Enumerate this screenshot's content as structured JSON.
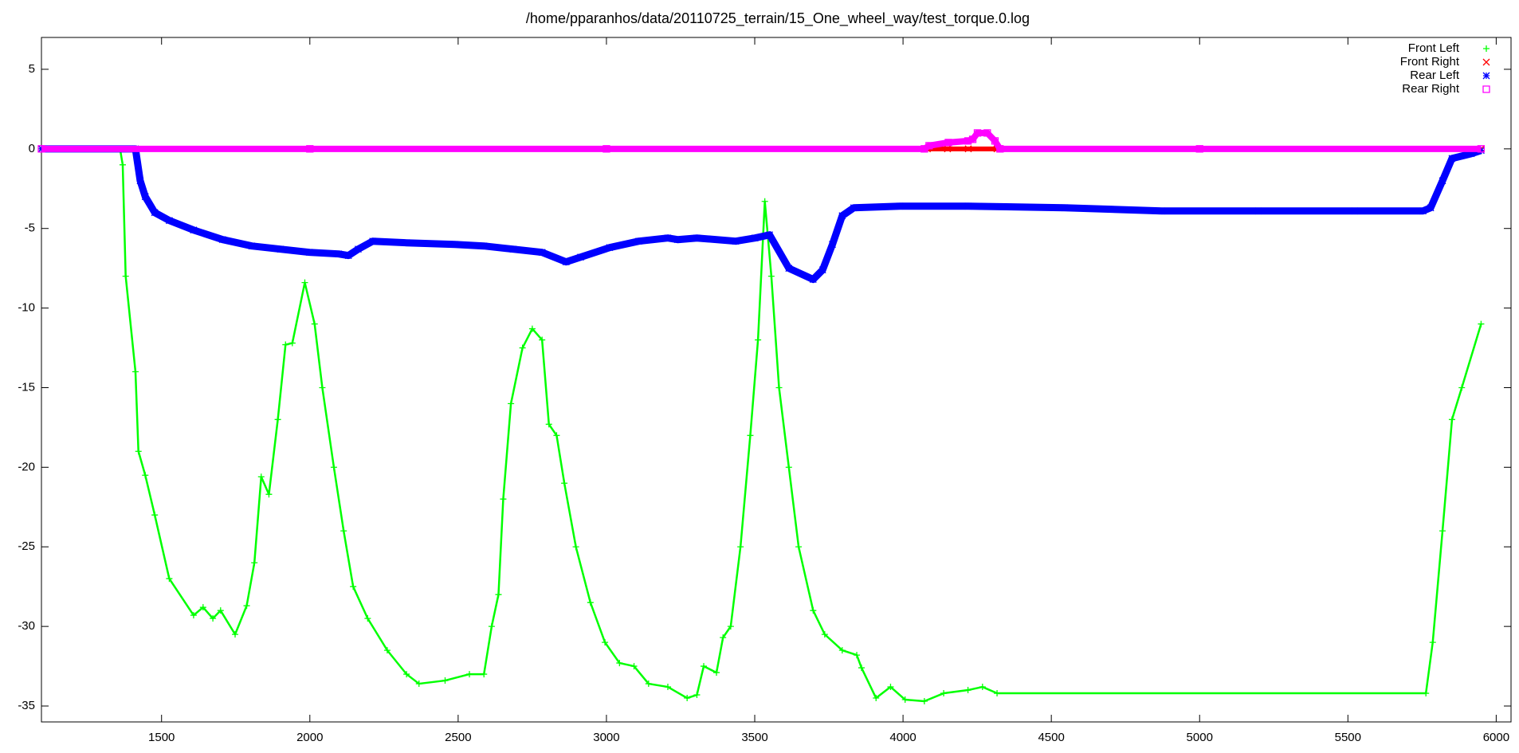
{
  "chart_data": {
    "type": "scatter",
    "title": "/home/pparanhos/data/20110725_terrain/15_One_wheel_way/test_torque.0.log",
    "xlim": [
      1095,
      6050
    ],
    "ylim": [
      -36,
      7
    ],
    "xticks": [
      1500,
      2000,
      2500,
      3000,
      3500,
      4000,
      4500,
      5000,
      5500,
      6000
    ],
    "yticks": [
      5,
      0,
      -5,
      -10,
      -15,
      -20,
      -25,
      -30,
      -35
    ],
    "grid": false,
    "legend": "top-right",
    "series": [
      {
        "name": "Front Left",
        "color": "#00ff00",
        "marker": "plus",
        "x": [
          1095,
          1360,
          1369,
          1379,
          1412,
          1422,
          1445,
          1477,
          1526,
          1608,
          1640,
          1673,
          1699,
          1748,
          1787,
          1813,
          1836,
          1862,
          1892,
          1918,
          1941,
          1983,
          2016,
          2042,
          2081,
          2114,
          2146,
          2195,
          2261,
          2326,
          2368,
          2456,
          2538,
          2587,
          2613,
          2636,
          2652,
          2678,
          2717,
          2750,
          2783,
          2806,
          2832,
          2858,
          2897,
          2946,
          2995,
          3044,
          3093,
          3142,
          3207,
          3272,
          3305,
          3328,
          3371,
          3393,
          3419,
          3452,
          3485,
          3511,
          3534,
          3556,
          3582,
          3615,
          3648,
          3697,
          3736,
          3795,
          3844,
          3860,
          3909,
          3958,
          4007,
          4072,
          4137,
          4219,
          4268,
          4317,
          5763,
          5786,
          5819,
          5851,
          5884,
          5949
        ],
        "values": [
          0,
          0,
          -1,
          -8,
          -14,
          -19,
          -20.5,
          -23,
          -27,
          -29.3,
          -28.8,
          -29.5,
          -29,
          -30.5,
          -28.7,
          -26,
          -20.6,
          -21.7,
          -17,
          -12.3,
          -12.2,
          -8.4,
          -11,
          -15,
          -20,
          -24,
          -27.5,
          -29.5,
          -31.5,
          -33,
          -33.6,
          -33.4,
          -33,
          -33,
          -30,
          -28,
          -22,
          -16,
          -12.5,
          -11.3,
          -12,
          -17.3,
          -18,
          -21,
          -25,
          -28.5,
          -31,
          -32.3,
          -32.5,
          -33.6,
          -33.8,
          -34.5,
          -34.3,
          -32.5,
          -32.9,
          -30.7,
          -30,
          -25,
          -18,
          -12,
          -3.3,
          -8,
          -15,
          -20,
          -25,
          -29,
          -30.5,
          -31.5,
          -31.8,
          -32.6,
          -34.5,
          -33.8,
          -34.6,
          -34.7,
          -34.2,
          -34,
          -33.8,
          -34.2,
          -34.2,
          -31,
          -24,
          -17,
          -15,
          -11
        ]
      },
      {
        "name": "Front Right",
        "color": "#ff0000",
        "marker": "cross",
        "x": [
          1095,
          4082,
          4150,
          4220,
          4317,
          5949
        ],
        "values": [
          0,
          0,
          0,
          0,
          0,
          0
        ]
      },
      {
        "name": "Rear Left",
        "color": "#0000ff",
        "marker": "star",
        "x": [
          1095,
          1412,
          1428,
          1445,
          1477,
          1526,
          1608,
          1706,
          1804,
          1901,
          1999,
          2097,
          2130,
          2163,
          2212,
          2326,
          2489,
          2587,
          2685,
          2783,
          2864,
          2913,
          3011,
          3109,
          3207,
          3240,
          3305,
          3436,
          3501,
          3550,
          3615,
          3697,
          3729,
          3762,
          3795,
          3834,
          3990,
          4219,
          4545,
          4872,
          5198,
          5524,
          5753,
          5779,
          5819,
          5851,
          5916,
          5949
        ],
        "values": [
          0,
          0,
          -2,
          -3,
          -4,
          -4.5,
          -5.1,
          -5.7,
          -6.1,
          -6.3,
          -6.5,
          -6.6,
          -6.7,
          -6.3,
          -5.8,
          -5.9,
          -6,
          -6.1,
          -6.3,
          -6.5,
          -7.1,
          -6.8,
          -6.2,
          -5.8,
          -5.6,
          -5.7,
          -5.6,
          -5.8,
          -5.6,
          -5.4,
          -7.5,
          -8.2,
          -7.6,
          -6,
          -4.2,
          -3.7,
          -3.6,
          -3.6,
          -3.7,
          -3.9,
          -3.9,
          -3.9,
          -3.9,
          -3.7,
          -2,
          -0.6,
          -0.3,
          -0.1
        ]
      },
      {
        "name": "Rear Right",
        "color": "#ff00ff",
        "marker": "square",
        "x": [
          1095,
          2000,
          3000,
          4072,
          4088,
          4153,
          4219,
          4235,
          4251,
          4284,
          4310,
          4327,
          5000,
          5949
        ],
        "values": [
          0,
          0,
          0,
          0,
          0.2,
          0.4,
          0.5,
          0.6,
          1,
          1,
          0.5,
          0,
          0,
          0
        ]
      }
    ]
  }
}
